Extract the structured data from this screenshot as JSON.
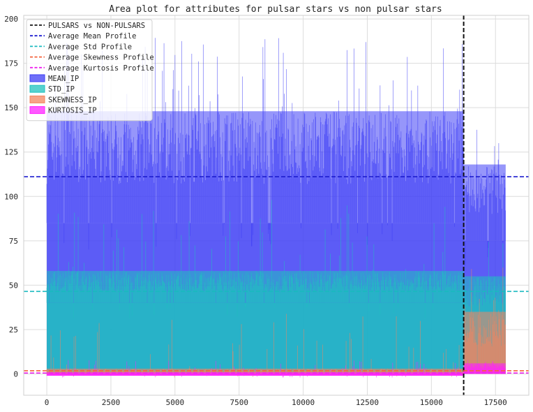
{
  "chart_data": {
    "type": "area",
    "title": "Area plot for attributes for pulsar stars vs non pulsar stars",
    "xlabel": "",
    "ylabel": "",
    "xlim": [
      -900,
      18800
    ],
    "ylim": [
      -12,
      202
    ],
    "x_ticks": [
      0,
      2500,
      5000,
      7500,
      10000,
      12500,
      15000,
      17500
    ],
    "x_tick_labels": [
      "0",
      "2500",
      "5000",
      "7500",
      "10000",
      "12500",
      "15000",
      "17500"
    ],
    "y_ticks": [
      0,
      25,
      50,
      75,
      100,
      125,
      150,
      175,
      200
    ],
    "y_tick_labels": [
      "0",
      "25",
      "50",
      "75",
      "100",
      "125",
      "150",
      "175",
      "200"
    ],
    "grid": true,
    "legend_position": "top-left",
    "x_extent": [
      0,
      17898
    ],
    "split_index": 16259,
    "series": [
      {
        "name": "MEAN_IP",
        "color": "#3f3ff5",
        "segments": [
          {
            "x": [
              0,
              16259
            ],
            "typical_low": 85,
            "typical_high": 148,
            "min": 70,
            "max": 190
          },
          {
            "x": [
              16259,
              17898
            ],
            "typical_low": 75,
            "typical_high": 118,
            "min": 60,
            "max": 139
          }
        ]
      },
      {
        "name": "STD_IP",
        "color": "#1fc1bf",
        "segments": [
          {
            "x": [
              0,
              16259
            ],
            "typical_low": 40,
            "typical_high": 58,
            "min": 30,
            "max": 98
          },
          {
            "x": [
              16259,
              17898
            ],
            "typical_low": 28,
            "typical_high": 55,
            "min": 20,
            "max": 75
          }
        ]
      },
      {
        "name": "SKEWNESS_IP",
        "color": "#f4845f",
        "segments": [
          {
            "x": [
              0,
              16259
            ],
            "typical_low": 0,
            "typical_high": 3,
            "min": -2,
            "max": 34
          },
          {
            "x": [
              16259,
              17898
            ],
            "typical_low": 5,
            "typical_high": 35,
            "min": 0,
            "max": 68
          }
        ]
      },
      {
        "name": "KURTOSIS_IP",
        "color": "#ff21ff",
        "segments": [
          {
            "x": [
              0,
              16259
            ],
            "typical_low": -1,
            "typical_high": 1,
            "min": -2,
            "max": 8
          },
          {
            "x": [
              16259,
              17898
            ],
            "typical_low": 1,
            "typical_high": 6,
            "min": 0,
            "max": 9
          }
        ]
      }
    ],
    "reference_lines": [
      {
        "name": "PULSARS vs NON-PULSARS",
        "orientation": "vertical",
        "x": 16259,
        "color": "#111111"
      },
      {
        "name": "Average Mean Profile",
        "orientation": "horizontal",
        "y": 111.1,
        "color": "#1c1ccf"
      },
      {
        "name": "Average Std Profile",
        "orientation": "horizontal",
        "y": 46.5,
        "color": "#19b9bf"
      },
      {
        "name": "Average Skewness Profile",
        "orientation": "horizontal",
        "y": 1.8,
        "color": "#f4603a"
      },
      {
        "name": "Average Kurtosis Profile",
        "orientation": "horizontal",
        "y": 0.5,
        "color": "#ee22ee"
      }
    ]
  }
}
